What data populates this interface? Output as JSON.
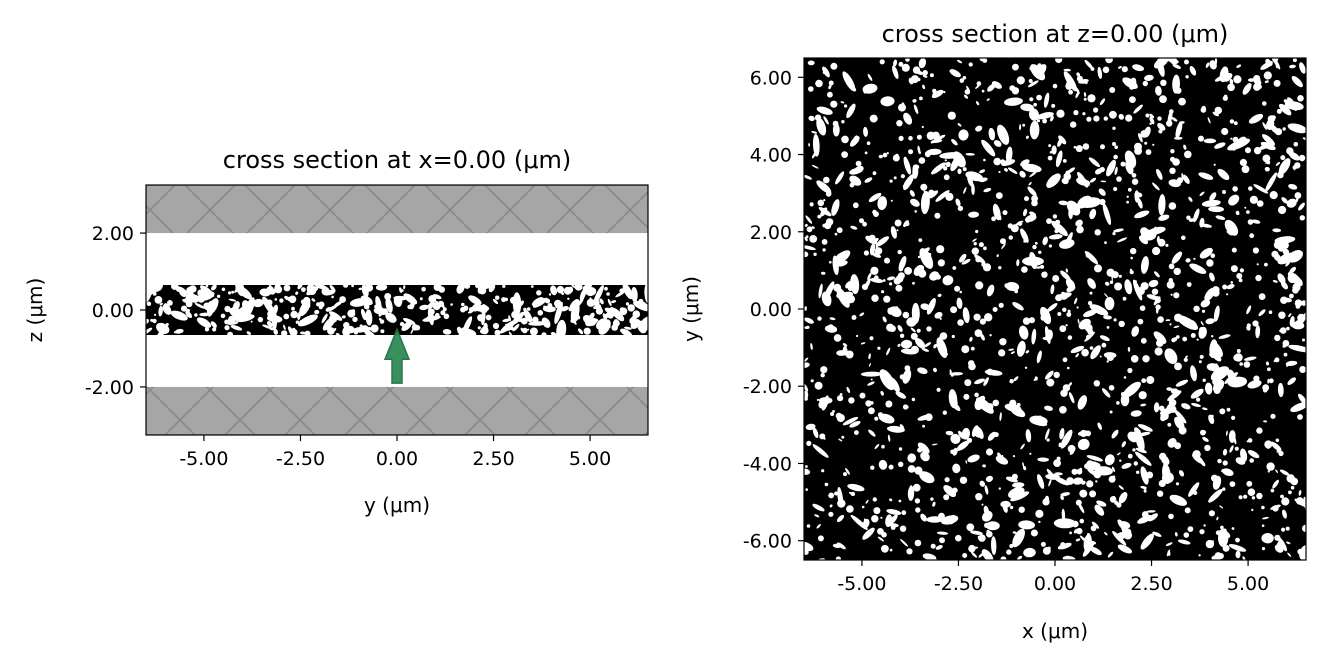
{
  "chart_data": [
    {
      "type": "heatmap",
      "title": "cross section at x=0.00 (μm)",
      "xlabel": "y (μm)",
      "ylabel": "z (μm)",
      "xlim": [
        -6.5,
        6.5
      ],
      "ylim": [
        -3.25,
        3.25
      ],
      "xticks": [
        -5.0,
        -2.5,
        0.0,
        2.5,
        5.0
      ],
      "xtick_labels": [
        "-5.00",
        "-2.50",
        "0.00",
        "2.50",
        "5.00"
      ],
      "yticks": [
        -2.0,
        0.0,
        2.0
      ],
      "ytick_labels": [
        "-2.00",
        "0.00",
        "2.00"
      ],
      "regions": [
        {
          "kind": "hatched-boundary",
          "z_range": [
            2.0,
            3.25
          ],
          "color": "#a6a6a6"
        },
        {
          "kind": "hatched-boundary",
          "z_range": [
            -3.25,
            -2.0
          ],
          "color": "#a6a6a6"
        },
        {
          "kind": "random-structure",
          "z_range": [
            -0.65,
            0.65
          ],
          "color": "#000000"
        }
      ],
      "source_arrow": {
        "y": 0.0,
        "z_from": -1.9,
        "z_to": -0.5,
        "color": "#2e8b57"
      }
    },
    {
      "type": "heatmap",
      "title": "cross section at z=0.00 (μm)",
      "xlabel": "x (μm)",
      "ylabel": "y (μm)",
      "xlim": [
        -6.5,
        6.5
      ],
      "ylim": [
        -6.5,
        6.5
      ],
      "xticks": [
        -5.0,
        -2.5,
        0.0,
        2.5,
        5.0
      ],
      "xtick_labels": [
        "-5.00",
        "-2.50",
        "0.00",
        "2.50",
        "5.00"
      ],
      "yticks": [
        -6.0,
        -4.0,
        -2.0,
        0.0,
        2.0,
        4.0,
        6.0
      ],
      "ytick_labels": [
        "-6.00",
        "-4.00",
        "-2.00",
        "0.00",
        "2.00",
        "4.00",
        "6.00"
      ],
      "regions": [
        {
          "kind": "random-structure",
          "x_range": [
            -6.5,
            6.5
          ],
          "y_range": [
            -6.5,
            6.5
          ],
          "color": "#000000"
        }
      ]
    }
  ]
}
